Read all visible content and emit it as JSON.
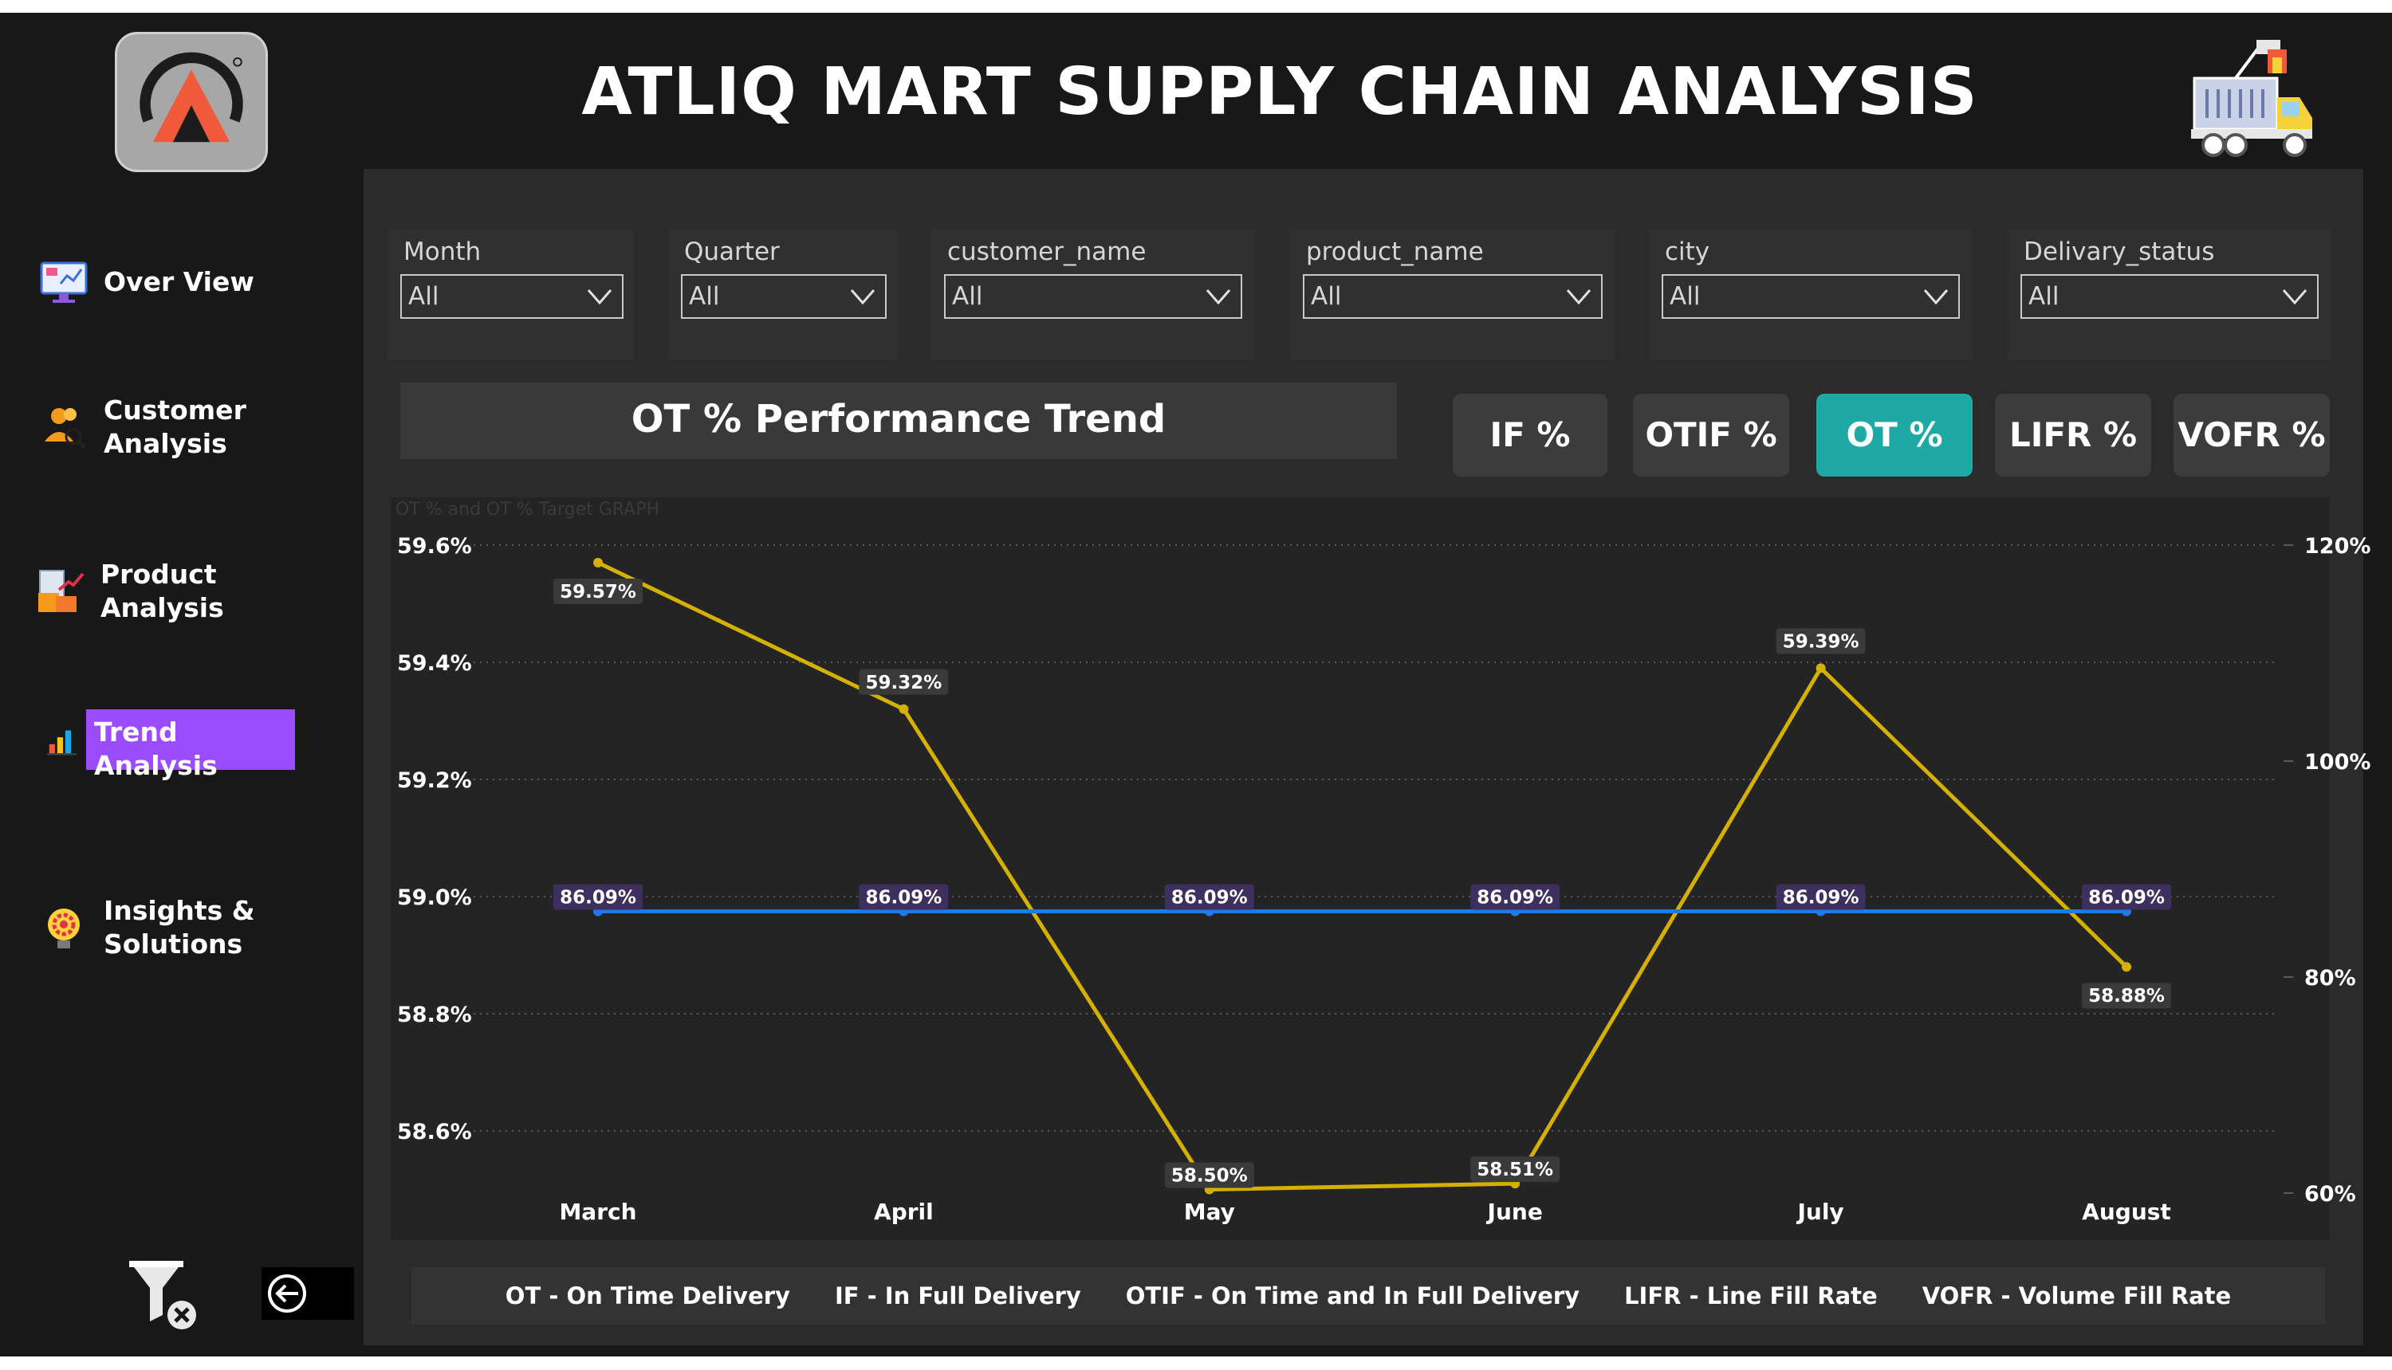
{
  "app": {
    "title": "ATLIQ MART SUPPLY CHAIN ANALYSIS"
  },
  "sidebar": {
    "items": [
      {
        "label_line1": "Over View",
        "label_line2": "",
        "icon": "monitor-dashboard-icon"
      },
      {
        "label_line1": "Customer",
        "label_line2": "Analysis",
        "icon": "customers-icon"
      },
      {
        "label_line1": "Product",
        "label_line2": "Analysis",
        "icon": "product-boxes-icon"
      },
      {
        "label_line1": "Trend Analysis",
        "label_line2": "",
        "icon": "bar-chart-icon",
        "active": true
      },
      {
        "label_line1": "Insights &",
        "label_line2": "Solutions",
        "icon": "lightbulb-gear-icon"
      }
    ],
    "active_color": "#9b4cff"
  },
  "filters": [
    {
      "label": "Month",
      "value": "All"
    },
    {
      "label": "Quarter",
      "value": "All"
    },
    {
      "label": "customer_name",
      "value": "All"
    },
    {
      "label": "product_name",
      "value": "All"
    },
    {
      "label": "city",
      "value": "All"
    },
    {
      "label": "Delivary_status",
      "value": "All"
    }
  ],
  "section": {
    "title": "OT % Performance Trend"
  },
  "kpi_buttons": [
    {
      "label": "IF %",
      "active": false
    },
    {
      "label": "OTIF %",
      "active": false
    },
    {
      "label": "OT %",
      "active": true
    },
    {
      "label": "LIFR %",
      "active": false
    },
    {
      "label": "VOFR %",
      "active": false
    }
  ],
  "accent_color": "#1fa9a4",
  "legend": {
    "items": [
      "OT - On Time Delivery",
      "IF - In Full Delivery",
      "OTIF - On Time and In Full Delivery",
      "LIFR - Line Fill Rate",
      "VOFR - Volume Fill Rate"
    ]
  },
  "chart_data": {
    "type": "line",
    "title": "OT % and OT % Target GRAPH",
    "categories": [
      "March",
      "April",
      "May",
      "June",
      "July",
      "August"
    ],
    "series": [
      {
        "values": [
          59.57,
          59.32,
          58.5,
          58.51,
          59.39,
          58.88
        ],
        "labels": [
          "59.57%",
          "59.32%",
          "58.50%",
          "58.51%",
          "59.39%",
          "58.88%"
        ],
        "color": "#d4b000",
        "axis": "left"
      },
      {
        "values": [
          86.09,
          86.09,
          86.09,
          86.09,
          86.09,
          86.09
        ],
        "labels": [
          "86.09%",
          "86.09%",
          "86.09%",
          "86.09%",
          "86.09%",
          "86.09%"
        ],
        "color": "#1e7bea",
        "axis": "right"
      }
    ],
    "y_left": {
      "ticks": [
        "59.6%",
        "59.4%",
        "59.2%",
        "59.0%",
        "58.8%",
        "58.6%"
      ],
      "tick_values": [
        59.6,
        59.4,
        59.2,
        59.0,
        58.8,
        58.6
      ],
      "min": 58.5,
      "max": 59.6
    },
    "y_right": {
      "ticks": [
        "120%",
        "100%",
        "80%",
        "60%"
      ],
      "tick_values": [
        120,
        100,
        80,
        60
      ],
      "min": 60,
      "max": 120
    },
    "grid": true
  }
}
